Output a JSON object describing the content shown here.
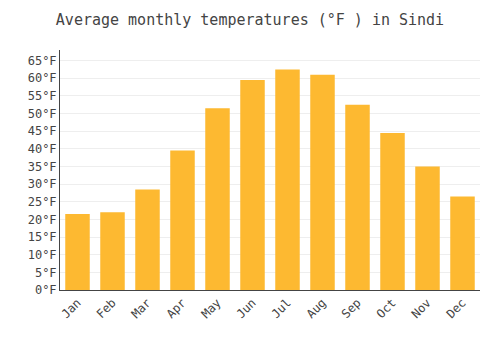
{
  "chart_data": {
    "type": "bar",
    "title": "Average monthly temperatures (°F ) in Sindi",
    "categories": [
      "Jan",
      "Feb",
      "Mar",
      "Apr",
      "May",
      "Jun",
      "Jul",
      "Aug",
      "Sep",
      "Oct",
      "Nov",
      "Dec"
    ],
    "values": [
      21.5,
      22.0,
      28.5,
      39.5,
      51.5,
      59.5,
      62.5,
      61.0,
      52.5,
      44.5,
      35.0,
      26.5
    ],
    "color": "#FDB931",
    "ylim": [
      0,
      68
    ],
    "yticks": [
      {
        "value": 0,
        "label": "0°F"
      },
      {
        "value": 5,
        "label": "5°F"
      },
      {
        "value": 10,
        "label": "10°F"
      },
      {
        "value": 15,
        "label": "15°F"
      },
      {
        "value": 20,
        "label": "20°F"
      },
      {
        "value": 25,
        "label": "25°F"
      },
      {
        "value": 30,
        "label": "30°F"
      },
      {
        "value": 35,
        "label": "35°F"
      },
      {
        "value": 40,
        "label": "40°F"
      },
      {
        "value": 45,
        "label": "45°F"
      },
      {
        "value": 50,
        "label": "50°F"
      },
      {
        "value": 55,
        "label": "55°F"
      },
      {
        "value": 60,
        "label": "60°F"
      },
      {
        "value": 65,
        "label": "65°F"
      }
    ],
    "grid": true
  }
}
